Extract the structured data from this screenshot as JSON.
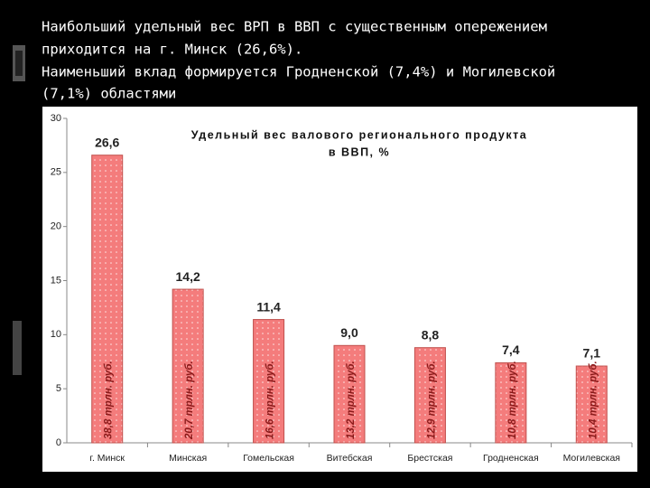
{
  "slide_text": [
    "Наибольший удельный вес ВРП в ВВП с существенным опережением",
    "приходится на г. Минск (26,6%).",
    "Наименьший вклад формируется Гродненской (7,4%) и Могилевской",
    "(7,1%) областями"
  ],
  "chart_data": {
    "type": "bar",
    "title": [
      "Удельный вес валового регионального продукта",
      "в ВВП, %"
    ],
    "categories": [
      "г. Минск",
      "Минская",
      "Гомельская",
      "Витебская",
      "Брестская",
      "Гродненская",
      "Могилевская"
    ],
    "values": [
      26.6,
      14.2,
      11.4,
      9.0,
      8.8,
      7.4,
      7.1
    ],
    "value_labels": [
      "26,6",
      "14,2",
      "11,4",
      "9,0",
      "8,8",
      "7,4",
      "7,1"
    ],
    "bar_annotations": [
      "38,8 трлн. руб.",
      "20,7 трлн. руб.",
      "16,6 трлн. руб.",
      "13,2 трлн. руб.",
      "12,9 трлн. руб.",
      "10,8 трлн. руб.",
      "10,4 трлн. руб."
    ],
    "color": "#f47c7c",
    "ylim": [
      0,
      30
    ],
    "yticks": [
      0,
      5,
      10,
      15,
      20,
      25,
      30
    ],
    "grid": false
  }
}
